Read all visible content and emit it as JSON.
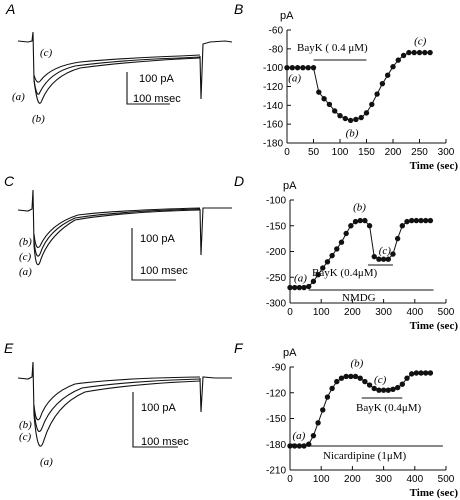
{
  "chart_data": [
    {
      "panel": "A",
      "type": "trace",
      "series_labels": [
        "(a)",
        "(b)",
        "(c)"
      ],
      "scalebar": {
        "y_label": "100 pA",
        "x_label": "100 msec"
      }
    },
    {
      "panel": "B",
      "type": "scatter",
      "y_unit": "pA",
      "xlabel": "Time (sec)",
      "xlim": [
        0,
        300
      ],
      "ylim": [
        -180,
        -60
      ],
      "xticks": [
        0,
        50,
        100,
        150,
        200,
        250,
        300
      ],
      "yticks": [
        -60,
        -80,
        -100,
        -120,
        -140,
        -160,
        -180
      ],
      "x": [
        0,
        10,
        20,
        30,
        40,
        50,
        60,
        70,
        80,
        90,
        100,
        110,
        120,
        130,
        140,
        150,
        160,
        170,
        180,
        190,
        200,
        210,
        220,
        230,
        240,
        250,
        260,
        270
      ],
      "y": [
        -100,
        -100,
        -100,
        -100,
        -100,
        -100,
        -126,
        -133,
        -139,
        -146,
        -151,
        -154,
        -156,
        -155,
        -153,
        -148,
        -139,
        -128,
        -117,
        -108,
        -99,
        -92,
        -87,
        -84,
        -84,
        -84,
        -84,
        -84
      ],
      "bars": [
        {
          "label": "BayK ( 0.4 μM)",
          "x": [
            50,
            150
          ]
        }
      ],
      "points": [
        {
          "label": "(a)",
          "x": 40,
          "y": -100
        },
        {
          "label": "(b)",
          "x": 120,
          "y": -156
        },
        {
          "label": "(c)",
          "x": 255,
          "y": -84
        }
      ]
    },
    {
      "panel": "C",
      "type": "trace",
      "series_labels": [
        "(b)",
        "(c)",
        "(a)"
      ],
      "scalebar": {
        "y_label": "100 pA",
        "x_label": "100 msec"
      }
    },
    {
      "panel": "D",
      "type": "scatter",
      "y_unit": "pA",
      "xlabel": "Time (sec)",
      "xlim": [
        0,
        500
      ],
      "ylim": [
        -300,
        -100
      ],
      "xticks": [
        0,
        100,
        200,
        300,
        400,
        500
      ],
      "yticks": [
        -100,
        -150,
        -200,
        -250,
        -300
      ],
      "x": [
        0,
        15,
        30,
        45,
        60,
        75,
        90,
        105,
        120,
        135,
        150,
        165,
        180,
        195,
        210,
        225,
        240,
        255,
        270,
        285,
        300,
        315,
        330,
        345,
        360,
        375,
        390,
        405,
        420,
        435,
        450
      ],
      "y": [
        -270,
        -270,
        -270,
        -270,
        -268,
        -258,
        -245,
        -232,
        -220,
        -208,
        -195,
        -182,
        -165,
        -150,
        -142,
        -140,
        -140,
        -150,
        -210,
        -215,
        -215,
        -215,
        -205,
        -175,
        -150,
        -142,
        -140,
        -140,
        -140,
        -140,
        -140
      ],
      "bars": [
        {
          "label": "BayK (0.4μM)",
          "x": [
            250,
            330
          ]
        },
        {
          "label": "NMDG",
          "x": [
            60,
            460
          ]
        }
      ],
      "points": [
        {
          "label": "(a)",
          "x": 45,
          "y": -270
        },
        {
          "label": "(b)",
          "x": 215,
          "y": -140
        },
        {
          "label": "(c)",
          "x": 310,
          "y": -215
        }
      ]
    },
    {
      "panel": "E",
      "type": "trace",
      "series_labels": [
        "(b)",
        "(c)",
        "(a)"
      ],
      "scalebar": {
        "y_label": "100 pA",
        "x_label": "100 msec"
      }
    },
    {
      "panel": "F",
      "type": "scatter",
      "y_unit": "pA",
      "xlabel": "Time (sec)",
      "xlim": [
        0,
        500
      ],
      "ylim": [
        -210,
        -90
      ],
      "xticks": [
        0,
        100,
        200,
        300,
        400,
        500
      ],
      "yticks": [
        -90,
        -120,
        -150,
        -180,
        -210
      ],
      "x": [
        0,
        15,
        30,
        45,
        60,
        75,
        90,
        105,
        120,
        135,
        150,
        165,
        180,
        195,
        210,
        225,
        240,
        255,
        270,
        285,
        300,
        315,
        330,
        345,
        360,
        375,
        390,
        405,
        420,
        435,
        450
      ],
      "y": [
        -182,
        -182,
        -182,
        -182,
        -180,
        -170,
        -155,
        -140,
        -125,
        -115,
        -107,
        -103,
        -101,
        -101,
        -101,
        -103,
        -107,
        -111,
        -115,
        -117,
        -117,
        -117,
        -116,
        -114,
        -110,
        -103,
        -98,
        -97,
        -97,
        -97,
        -97
      ],
      "bars": [
        {
          "label": "BayK (0.4μM)",
          "x": [
            230,
            360
          ]
        },
        {
          "label": "Nicardipine (1μM)",
          "x": [
            60,
            490
          ]
        }
      ],
      "points": [
        {
          "label": "(a)",
          "x": 40,
          "y": -182
        },
        {
          "label": "(b)",
          "x": 210,
          "y": -101
        },
        {
          "label": "(c)",
          "x": 295,
          "y": -117
        }
      ]
    }
  ]
}
